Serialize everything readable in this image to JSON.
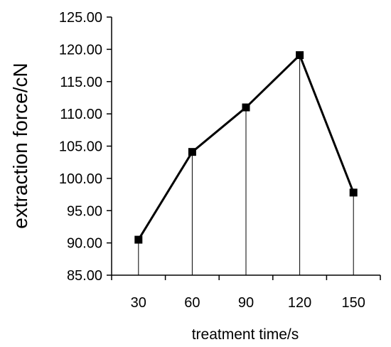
{
  "chart_data": {
    "type": "line",
    "title": "",
    "xlabel": "treatment time/s",
    "ylabel": "extraction force/cN",
    "categories": [
      "30",
      "60",
      "90",
      "120",
      "150"
    ],
    "series": [
      {
        "values": [
          90.5,
          104.1,
          111.0,
          119.1,
          97.8
        ]
      }
    ],
    "ylim": [
      85,
      125
    ],
    "yticks": [
      "85.00",
      "90.00",
      "95.00",
      "100.00",
      "105.00",
      "110.00",
      "115.00",
      "120.00",
      "125.00"
    ],
    "marker": "square",
    "drop_lines": true,
    "grid": false,
    "legend": "none",
    "line_color": "#000000"
  }
}
